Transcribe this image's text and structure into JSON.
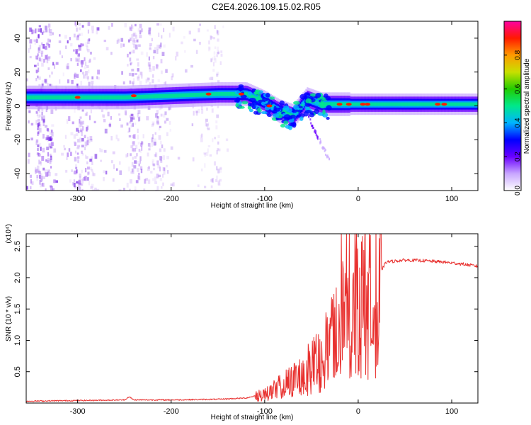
{
  "title": "C2E4.2026.109.15.02.R05",
  "chart_data": [
    {
      "type": "heatmap",
      "name": "spectrogram",
      "xlabel": "Height of straight line (km)",
      "ylabel": "Frequency (Hz)",
      "xlim": [
        -355,
        128
      ],
      "ylim": [
        -50,
        50
      ],
      "xticks": [
        -300,
        -200,
        -100,
        0,
        100
      ],
      "yticks": [
        -40,
        -20,
        0,
        20,
        40
      ],
      "ridge_centerline": [
        {
          "x": -355,
          "y": 5
        },
        {
          "x": -250,
          "y": 5
        },
        {
          "x": -150,
          "y": 7
        },
        {
          "x": -120,
          "y": 7
        },
        {
          "x": -100,
          "y": 2
        },
        {
          "x": -85,
          "y": -3
        },
        {
          "x": -70,
          "y": -6
        },
        {
          "x": -55,
          "y": 4
        },
        {
          "x": -40,
          "y": 1
        },
        {
          "x": 0,
          "y": 1
        },
        {
          "x": 50,
          "y": 1
        },
        {
          "x": 128,
          "y": 1
        }
      ],
      "colorbar": {
        "label": "Normalized spectral amplitude",
        "range": [
          0,
          1
        ],
        "ticks": [
          "0.0",
          "0.2",
          "0.4",
          "0.6",
          "0.8"
        ]
      }
    },
    {
      "type": "line",
      "name": "snr",
      "xlabel": "Height of straight line (km)",
      "ylabel": "SNR (10 * v/v)",
      "scale_label": "(x10⁴)",
      "xlim": [
        -355,
        128
      ],
      "ylim": [
        0,
        2.7
      ],
      "xticks": [
        -300,
        -200,
        -100,
        0,
        100
      ],
      "yticks": [
        "0.5",
        "1.0",
        "1.5",
        "2.0",
        "2.5"
      ],
      "series": [
        {
          "name": "SNR",
          "color": "#e8302e",
          "x": [
            -355,
            -300,
            -250,
            -245,
            -240,
            -200,
            -150,
            -120,
            -100,
            -80,
            -60,
            -50,
            -40,
            -30,
            -20,
            -15,
            -10,
            0,
            10,
            20,
            30,
            50,
            70,
            90,
            110,
            128
          ],
          "y": [
            0.03,
            0.04,
            0.05,
            0.1,
            0.05,
            0.05,
            0.06,
            0.08,
            0.15,
            0.3,
            0.5,
            0.65,
            0.8,
            1.0,
            1.2,
            1.5,
            1.75,
            2.0,
            1.85,
            2.0,
            2.25,
            2.28,
            2.27,
            2.25,
            2.22,
            2.18
          ]
        }
      ]
    }
  ]
}
